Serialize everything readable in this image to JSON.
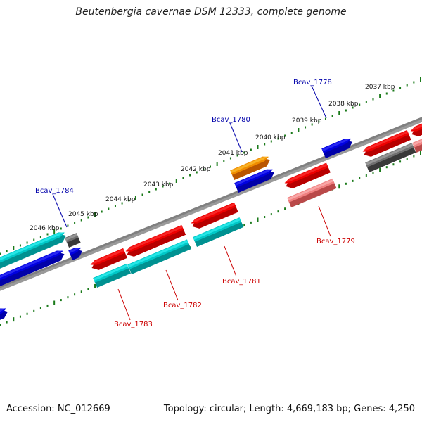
{
  "title": "Beutenbergia cavernae DSM 12333, complete genome",
  "footer": {
    "accession": "Accession: NC_012669",
    "summary": "Topology: circular; Length: 4,669,183 bp; Genes: 4,250"
  },
  "colors": {
    "backbone": "#808080",
    "tick": "#1a7a1a",
    "label_top": "#0000aa",
    "label_bottom": "#cc0000",
    "red": "#ee0000",
    "cyan": "#00c8c8",
    "blue": "#0000e0",
    "orange": "#f08c00",
    "gray": "#707070",
    "pink": "#f08080"
  },
  "kbp_labels": [
    "2046 kbp",
    "2045 kbp",
    "2044 kbp",
    "2043 kbp",
    "2042 kbp",
    "2041 kbp",
    "2040 kbp",
    "2039 kbp",
    "2038 kbp",
    "2037 kbp"
  ],
  "gene_labels": {
    "top": [
      "Bcav_1784",
      "Bcav_1780",
      "Bcav_1778"
    ],
    "bottom": [
      "Bcav_1783",
      "Bcav_1782",
      "Bcav_1781",
      "Bcav_1779"
    ]
  },
  "genes": [
    {
      "name": "",
      "track": 2,
      "color": "cyan"
    },
    {
      "name": "",
      "track": 1,
      "color": "blue"
    },
    {
      "name": "",
      "track": 2,
      "color": "gray"
    },
    {
      "name": "",
      "track": 1,
      "color": "blue"
    },
    {
      "name": "",
      "track": 1,
      "color": "blue"
    },
    {
      "name": "",
      "track": 2,
      "color": "orange"
    },
    {
      "name": "",
      "track": 1,
      "color": "blue"
    },
    {
      "name": "",
      "track": -1,
      "color": "red"
    },
    {
      "name": "",
      "track": -1,
      "color": "red"
    },
    {
      "name": "",
      "track": -1,
      "color": "red"
    },
    {
      "name": "",
      "track": -1,
      "color": "red"
    },
    {
      "name": "",
      "track": -1,
      "color": "red"
    },
    {
      "name": "",
      "track": -2,
      "color": "cyan"
    },
    {
      "name": "",
      "track": -2,
      "color": "cyan"
    },
    {
      "name": "",
      "track": -2,
      "color": "cyan"
    },
    {
      "name": "",
      "track": -2,
      "color": "pink"
    },
    {
      "name": "",
      "track": -2,
      "color": "gray"
    },
    {
      "name": "",
      "track": -2,
      "color": "pink"
    },
    {
      "name": "",
      "track": -1,
      "color": "red"
    },
    {
      "name": "",
      "track": -2,
      "color": "blue"
    }
  ]
}
